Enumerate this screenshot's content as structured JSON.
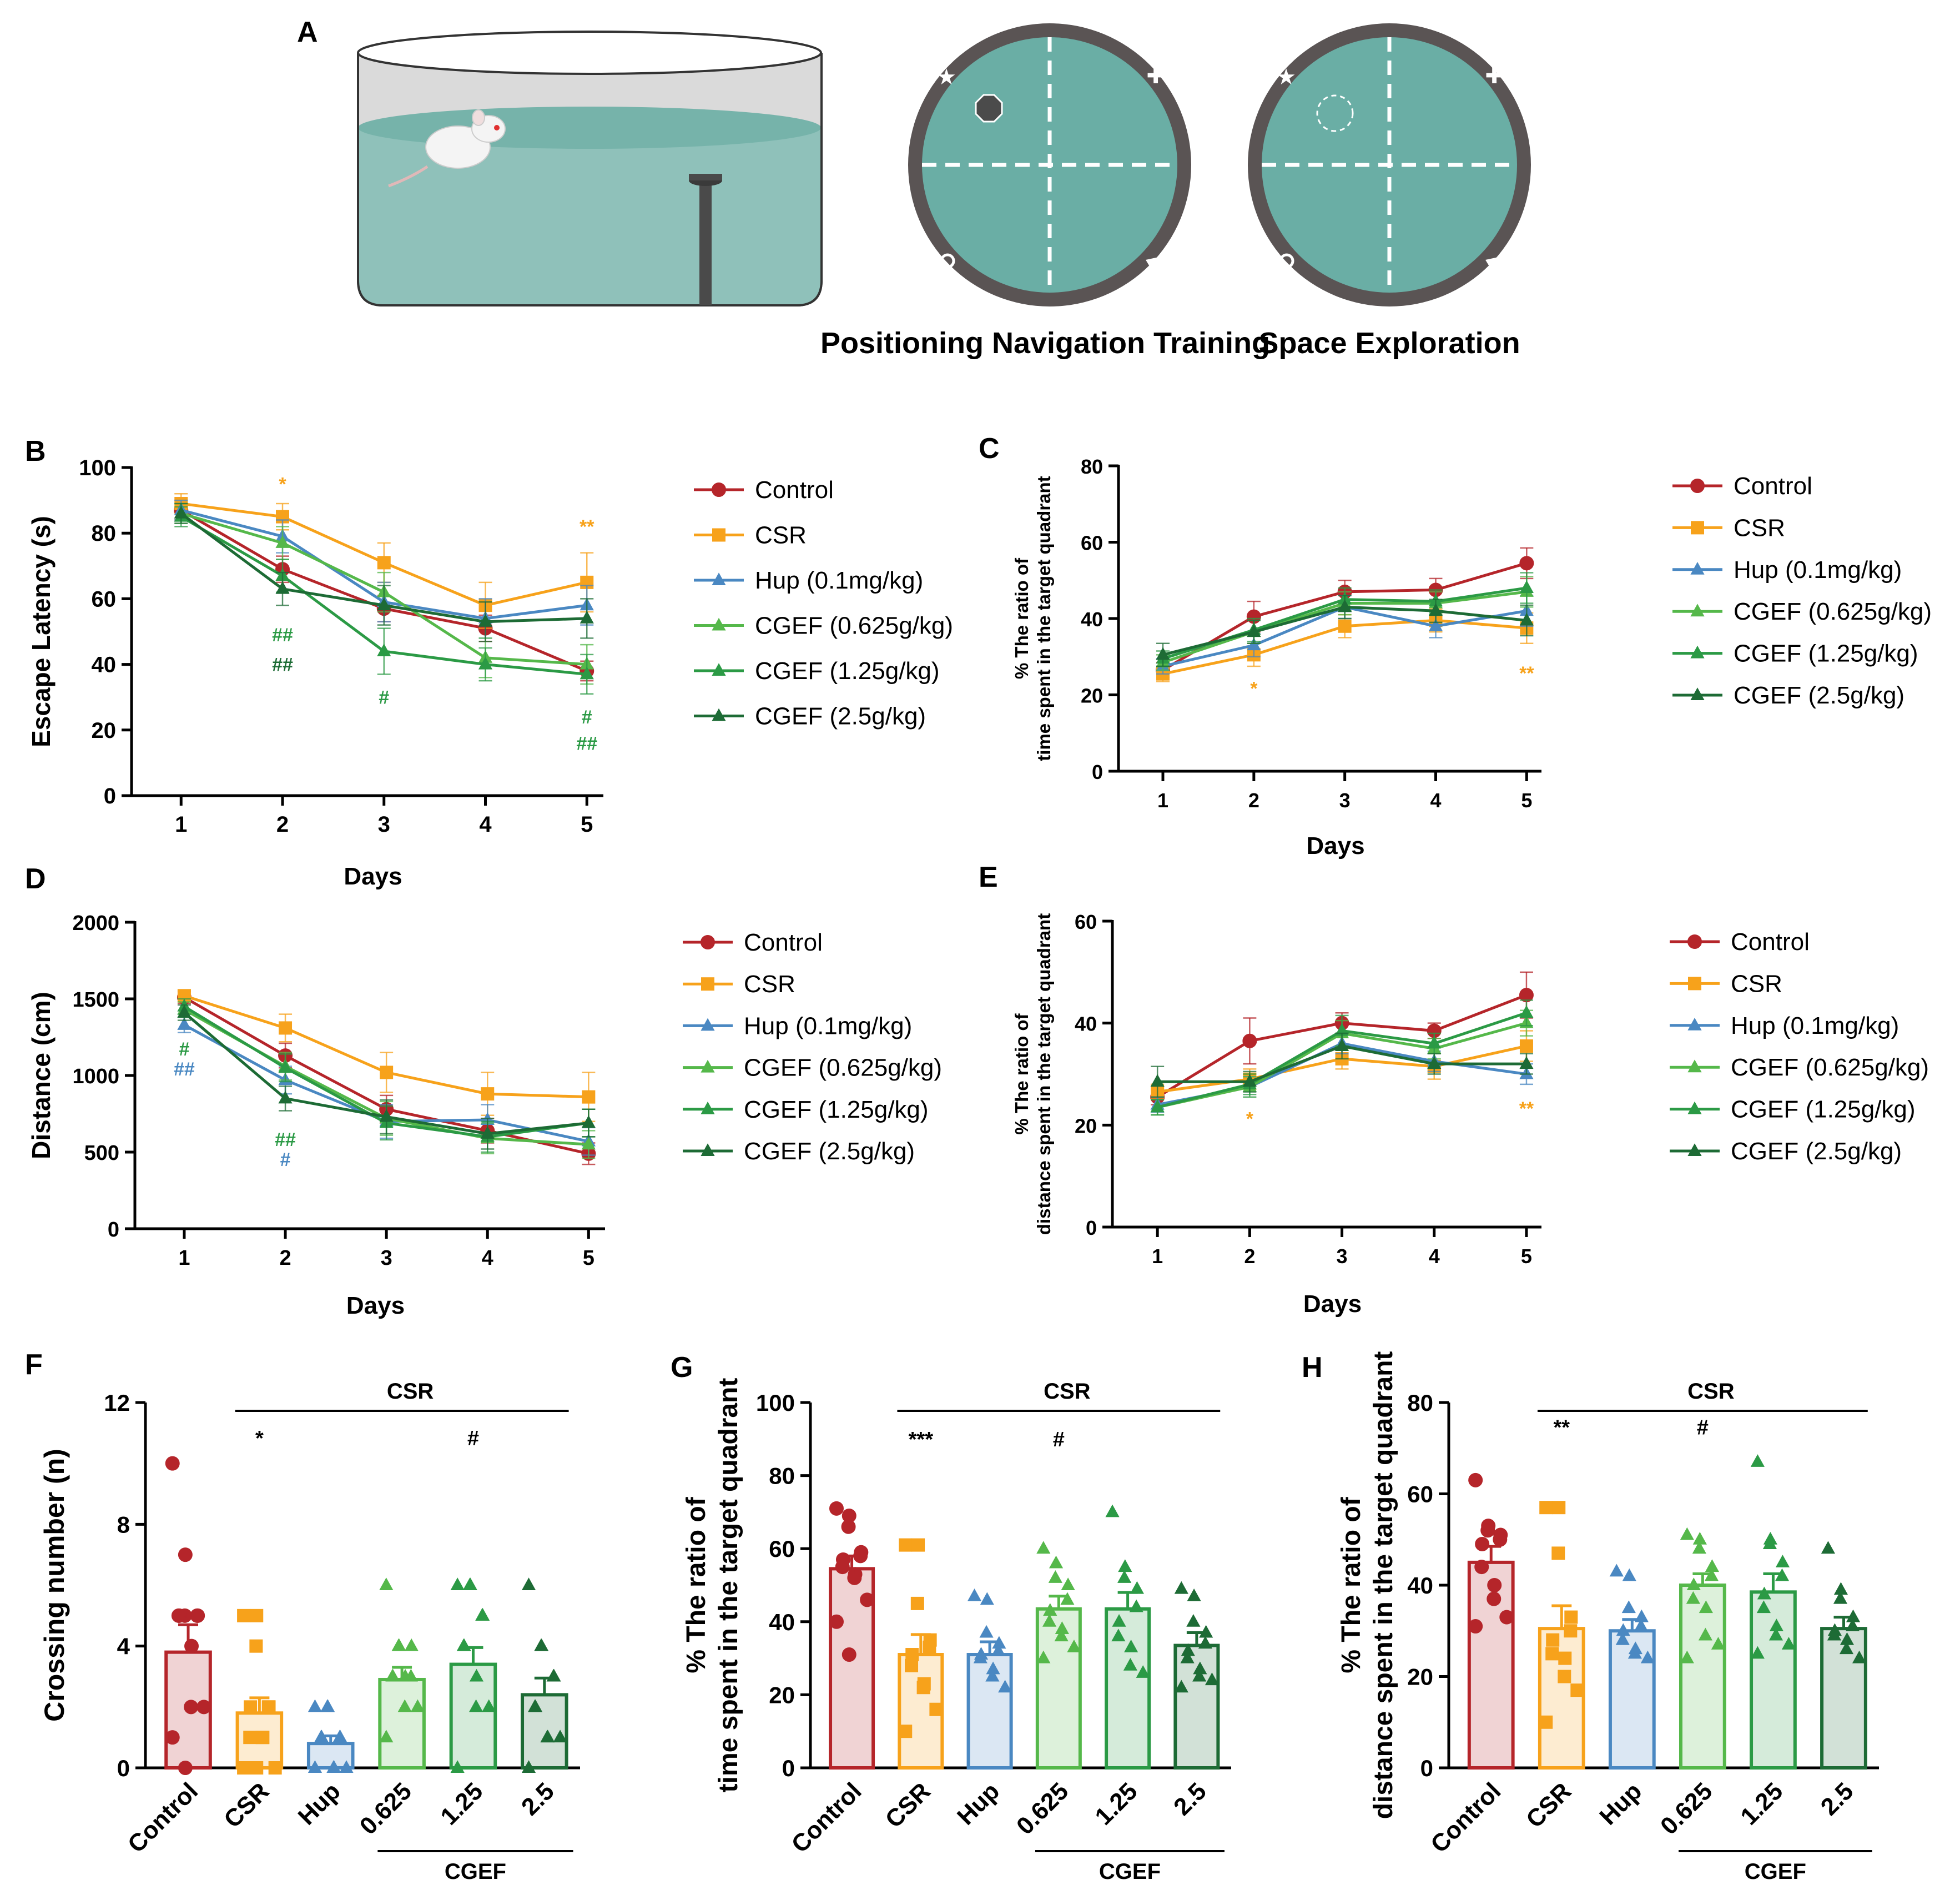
{
  "colors": {
    "Control": "#b5252a",
    "CSR": "#f7a21b",
    "Hup": "#4a88c2",
    "CGEF_0625": "#55b84a",
    "CGEF_125": "#2b9a45",
    "CGEF_25": "#1d6b35",
    "water": "#6aaea5",
    "pool_border": "#4d4848"
  },
  "panel_letters": [
    "A",
    "B",
    "C",
    "D",
    "E",
    "F",
    "G",
    "H"
  ],
  "panelA": {
    "maze_labels": [
      "Positioning Navigation Training",
      "Space Exploration"
    ]
  },
  "line_legend": [
    "Control",
    "CSR",
    "Hup (0.1mg/kg)",
    "CGEF (0.625g/kg)",
    "CGEF (1.25g/kg)",
    "CGEF (2.5g/kg)"
  ],
  "chart_data": [
    {
      "id": "B",
      "type": "line",
      "ylabel": "Escape Latency (s)",
      "xlabel": "Days",
      "x": [
        1,
        2,
        3,
        4,
        5
      ],
      "ylim": [
        0,
        100
      ],
      "yticks": [
        0,
        20,
        40,
        60,
        80,
        100
      ],
      "series": [
        {
          "name": "Control",
          "color_key": "Control",
          "marker": "circle",
          "values": [
            87,
            69,
            57,
            51,
            38
          ],
          "err": [
            3,
            4,
            4,
            4,
            3
          ]
        },
        {
          "name": "CSR",
          "color_key": "CSR",
          "marker": "square",
          "values": [
            89,
            85,
            71,
            58,
            65
          ],
          "err": [
            3,
            4,
            6,
            7,
            9
          ]
        },
        {
          "name": "Hup (0.1mg/kg)",
          "color_key": "Hup",
          "marker": "triangle",
          "values": [
            87,
            79,
            59,
            54,
            58
          ],
          "err": [
            3,
            5,
            6,
            6,
            6
          ]
        },
        {
          "name": "CGEF (0.625g/kg)",
          "color_key": "CGEF_0625",
          "marker": "triangle",
          "values": [
            86,
            77,
            62,
            42,
            40
          ],
          "err": [
            3,
            5,
            6,
            6,
            6
          ]
        },
        {
          "name": "CGEF (1.25g/kg)",
          "color_key": "CGEF_125",
          "marker": "triangle",
          "values": [
            85,
            67,
            44,
            40,
            37
          ],
          "err": [
            3,
            5,
            7,
            5,
            6
          ]
        },
        {
          "name": "CGEF (2.5g/kg)",
          "color_key": "CGEF_25",
          "marker": "triangle",
          "values": [
            86,
            63,
            58,
            53,
            54
          ],
          "err": [
            3,
            5,
            6,
            6,
            6
          ]
        }
      ],
      "annotations": [
        {
          "text": "*",
          "x": 2,
          "y": 93,
          "color_key": "CSR"
        },
        {
          "text": "**",
          "x": 5,
          "y": 80,
          "color_key": "CSR"
        },
        {
          "text": "##",
          "x": 2,
          "y": 47,
          "color_key": "CGEF_125"
        },
        {
          "text": "##",
          "x": 2,
          "y": 38,
          "color_key": "CGEF_25"
        },
        {
          "text": "#",
          "x": 3,
          "y": 28,
          "color_key": "CGEF_125"
        },
        {
          "text": "#",
          "x": 5,
          "y": 22,
          "color_key": "CGEF_125"
        },
        {
          "text": "##",
          "x": 5,
          "y": 14,
          "color_key": "CGEF_125"
        }
      ]
    },
    {
      "id": "C",
      "type": "line",
      "ylabel": "% The ratio of time spent in the target quadrant",
      "xlabel": "Days",
      "x": [
        1,
        2,
        3,
        4,
        5
      ],
      "ylim": [
        0,
        80
      ],
      "yticks": [
        0,
        20,
        40,
        60,
        80
      ],
      "series": [
        {
          "name": "Control",
          "color_key": "Control",
          "marker": "circle",
          "values": [
            26.5,
            40.5,
            47,
            47.5,
            54.5
          ],
          "err": [
            2,
            4,
            3,
            3,
            4
          ]
        },
        {
          "name": "CSR",
          "color_key": "CSR",
          "marker": "square",
          "values": [
            25.5,
            30.5,
            38,
            39.5,
            37.5
          ],
          "err": [
            2,
            3,
            3,
            3,
            4
          ]
        },
        {
          "name": "Hup (0.1mg/kg)",
          "color_key": "Hup",
          "marker": "triangle",
          "values": [
            27.5,
            33,
            43,
            38,
            42
          ],
          "err": [
            2,
            3,
            3,
            3,
            4
          ]
        },
        {
          "name": "CGEF (0.625g/kg)",
          "color_key": "CGEF_0625",
          "marker": "triangle",
          "values": [
            28.5,
            36.5,
            44,
            44,
            47
          ],
          "err": [
            2,
            3,
            3,
            3,
            4
          ]
        },
        {
          "name": "CGEF (1.25g/kg)",
          "color_key": "CGEF_125",
          "marker": "triangle",
          "values": [
            29.5,
            37,
            45,
            44.5,
            48
          ],
          "err": [
            2,
            3,
            3,
            3,
            4
          ]
        },
        {
          "name": "CGEF (2.5g/kg)",
          "color_key": "CGEF_25",
          "marker": "triangle",
          "values": [
            30.5,
            36.5,
            43,
            42,
            39.5
          ],
          "err": [
            3,
            3,
            3,
            3,
            4
          ]
        }
      ],
      "annotations": [
        {
          "text": "*",
          "x": 2,
          "y": 20,
          "color_key": "CSR"
        },
        {
          "text": "**",
          "x": 5,
          "y": 24,
          "color_key": "CSR"
        }
      ]
    },
    {
      "id": "D",
      "type": "line",
      "ylabel": "Distance (cm)",
      "xlabel": "Days",
      "x": [
        1,
        2,
        3,
        4,
        5
      ],
      "ylim": [
        0,
        2000
      ],
      "yticks": [
        0,
        500,
        1000,
        1500,
        2000
      ],
      "series": [
        {
          "name": "Control",
          "color_key": "Control",
          "marker": "circle",
          "values": [
            1510,
            1130,
            780,
            640,
            490
          ],
          "err": [
            40,
            80,
            90,
            80,
            70
          ]
        },
        {
          "name": "CSR",
          "color_key": "CSR",
          "marker": "square",
          "values": [
            1520,
            1310,
            1020,
            880,
            860
          ],
          "err": [
            40,
            90,
            130,
            140,
            160
          ]
        },
        {
          "name": "Hup (0.1mg/kg)",
          "color_key": "Hup",
          "marker": "triangle",
          "values": [
            1330,
            970,
            700,
            710,
            570
          ],
          "err": [
            50,
            90,
            110,
            100,
            90
          ]
        },
        {
          "name": "CGEF (0.625g/kg)",
          "color_key": "CGEF_0625",
          "marker": "triangle",
          "values": [
            1430,
            1060,
            720,
            590,
            550
          ],
          "err": [
            50,
            90,
            110,
            100,
            90
          ]
        },
        {
          "name": "CGEF (1.25g/kg)",
          "color_key": "CGEF_125",
          "marker": "triangle",
          "values": [
            1450,
            1050,
            690,
            600,
            690
          ],
          "err": [
            50,
            90,
            110,
            100,
            90
          ]
        },
        {
          "name": "CGEF (2.5g/kg)",
          "color_key": "CGEF_25",
          "marker": "triangle",
          "values": [
            1410,
            850,
            730,
            620,
            690
          ],
          "err": [
            50,
            80,
            110,
            100,
            90
          ]
        }
      ],
      "annotations": [
        {
          "text": "#",
          "x": 1,
          "y": 1130,
          "color_key": "CGEF_125"
        },
        {
          "text": "##",
          "x": 1,
          "y": 1000,
          "color_key": "Hup"
        },
        {
          "text": "##",
          "x": 2,
          "y": 540,
          "color_key": "CGEF_125"
        },
        {
          "text": "#",
          "x": 2,
          "y": 410,
          "color_key": "Hup"
        }
      ]
    },
    {
      "id": "E",
      "type": "line",
      "ylabel": "% The ratio of distance spent in the target quadrant",
      "xlabel": "Days",
      "x": [
        1,
        2,
        3,
        4,
        5
      ],
      "ylim": [
        0,
        60
      ],
      "yticks": [
        0,
        20,
        40,
        60
      ],
      "series": [
        {
          "name": "Control",
          "color_key": "Control",
          "marker": "circle",
          "values": [
            25.5,
            36.5,
            40,
            38.5,
            45.5
          ],
          "err": [
            1.5,
            4.5,
            2,
            1.5,
            4.5
          ]
        },
        {
          "name": "CSR",
          "color_key": "CSR",
          "marker": "square",
          "values": [
            26.5,
            29,
            33,
            31.5,
            35.5
          ],
          "err": [
            1.5,
            2,
            2,
            2.5,
            3
          ]
        },
        {
          "name": "Hup (0.1mg/kg)",
          "color_key": "Hup",
          "marker": "triangle",
          "values": [
            24,
            27.5,
            36,
            32.5,
            30
          ],
          "err": [
            1.5,
            2,
            2,
            2,
            2
          ]
        },
        {
          "name": "CGEF (0.625g/kg)",
          "color_key": "CGEF_0625",
          "marker": "triangle",
          "values": [
            23.5,
            27.5,
            38,
            35,
            40
          ],
          "err": [
            1.5,
            2,
            2.5,
            2,
            2.5
          ]
        },
        {
          "name": "CGEF (1.25g/kg)",
          "color_key": "CGEF_125",
          "marker": "triangle",
          "values": [
            23.5,
            28,
            38.5,
            36,
            42
          ],
          "err": [
            1.5,
            2,
            3,
            2,
            2.5
          ]
        },
        {
          "name": "CGEF (2.5g/kg)",
          "color_key": "CGEF_25",
          "marker": "triangle",
          "values": [
            28.5,
            28.5,
            35.5,
            32,
            32
          ],
          "err": [
            3,
            2,
            2.5,
            2,
            2
          ]
        }
      ],
      "annotations": [
        {
          "text": "*",
          "x": 2,
          "y": 20,
          "color_key": "CSR"
        },
        {
          "text": "**",
          "x": 5,
          "y": 22,
          "color_key": "CSR"
        }
      ]
    },
    {
      "id": "F",
      "type": "bar",
      "ylabel": "Crossing number (n)",
      "ylim": [
        0,
        12
      ],
      "yticks": [
        0,
        4,
        8,
        12
      ],
      "categories": [
        "Control",
        "CSR",
        "Hup",
        "0.625",
        "1.25",
        "2.5"
      ],
      "color_keys": [
        "Control",
        "CSR",
        "Hup",
        "CGEF_0625",
        "CGEF_125",
        "CGEF_25"
      ],
      "markers": [
        "circle",
        "square",
        "triangle",
        "triangle",
        "triangle",
        "triangle"
      ],
      "values": [
        3.8,
        1.8,
        0.8,
        2.9,
        3.4,
        2.4
      ],
      "err": [
        0.9,
        0.5,
        0.25,
        0.4,
        0.55,
        0.55
      ],
      "points": [
        [
          10,
          7,
          5,
          5,
          5,
          5,
          5,
          4,
          2,
          2,
          1,
          0
        ],
        [
          5,
          5,
          4,
          2,
          2,
          2,
          1,
          1,
          1,
          0,
          0,
          0
        ],
        [
          2,
          2,
          2,
          1,
          1,
          1,
          1,
          0,
          0,
          0,
          0
        ],
        [
          6,
          4,
          4,
          4,
          3,
          3,
          3,
          3,
          2,
          2,
          1
        ],
        [
          6,
          6,
          6,
          5,
          5,
          4,
          4,
          3,
          2,
          2,
          0
        ],
        [
          6,
          4,
          4,
          3,
          3,
          2,
          2,
          1,
          1,
          1,
          0
        ]
      ],
      "group_label": "CSR",
      "subgroup_label": "CGEF",
      "sig": [
        {
          "text": "*",
          "cat": 1,
          "y": 10.6
        },
        {
          "text": "#",
          "cat": 4,
          "y": 10.6
        }
      ]
    },
    {
      "id": "G",
      "type": "bar",
      "ylabel": "% The ratio of time spent in the target quadrant",
      "ylim": [
        0,
        100
      ],
      "yticks": [
        0,
        20,
        40,
        60,
        80,
        100
      ],
      "categories": [
        "Control",
        "CSR",
        "Hup",
        "0.625",
        "1.25",
        "2.5"
      ],
      "color_keys": [
        "Control",
        "CSR",
        "Hup",
        "CGEF_0625",
        "CGEF_125",
        "CGEF_25"
      ],
      "markers": [
        "circle",
        "square",
        "triangle",
        "triangle",
        "triangle",
        "triangle"
      ],
      "values": [
        54.5,
        31,
        31,
        43.5,
        43.5,
        33.5
      ],
      "err": [
        3.5,
        5.5,
        3.5,
        3.5,
        4.5,
        3.5
      ],
      "points": [
        [
          71,
          69,
          66,
          59,
          58,
          57,
          55,
          53,
          52,
          46,
          40,
          31
        ],
        [
          61,
          61,
          45,
          35,
          33,
          31,
          28,
          23,
          22,
          16,
          10
        ],
        [
          47,
          46,
          37,
          34,
          32,
          31,
          30,
          27,
          25,
          22
        ],
        [
          60,
          56,
          52,
          50,
          46,
          43,
          40,
          38,
          36,
          33,
          30
        ],
        [
          70,
          55,
          52,
          49,
          44,
          40,
          36,
          33,
          28,
          26
        ],
        [
          49,
          47,
          40,
          37,
          34,
          32,
          30,
          27,
          25,
          24,
          22
        ]
      ],
      "group_label": "CSR",
      "subgroup_label": "CGEF",
      "sig": [
        {
          "text": "***",
          "cat": 1,
          "y": 88
        },
        {
          "text": "#",
          "cat": 3,
          "y": 88
        }
      ]
    },
    {
      "id": "H",
      "type": "bar",
      "ylabel": "% The ratio of distance spent in the target quadrant",
      "ylim": [
        0,
        80
      ],
      "yticks": [
        0,
        20,
        40,
        60,
        80
      ],
      "categories": [
        "Control",
        "CSR",
        "Hup",
        "0.625",
        "1.25",
        "2.5"
      ],
      "color_keys": [
        "Control",
        "CSR",
        "Hup",
        "CGEF_0625",
        "CGEF_125",
        "CGEF_25"
      ],
      "markers": [
        "circle",
        "square",
        "triangle",
        "triangle",
        "triangle",
        "triangle"
      ],
      "values": [
        45,
        30.5,
        30,
        40,
        38.5,
        30.5
      ],
      "err": [
        3.5,
        5,
        2.5,
        2.5,
        4,
        2.5
      ],
      "points": [
        [
          63,
          53,
          52,
          51,
          50,
          49,
          44,
          40,
          37,
          33,
          31
        ],
        [
          57,
          57,
          47,
          33,
          30,
          28,
          25,
          24,
          20,
          17,
          10
        ],
        [
          43,
          42,
          35,
          33,
          31,
          30,
          28,
          26,
          25,
          24
        ],
        [
          51,
          50,
          48,
          44,
          42,
          40,
          37,
          35,
          29,
          27,
          24
        ],
        [
          67,
          50,
          49,
          45,
          42,
          38,
          35,
          31,
          29,
          27,
          25
        ],
        [
          48,
          39,
          37,
          33,
          31,
          30,
          29,
          28,
          26,
          24
        ]
      ],
      "group_label": "CSR",
      "subgroup_label": "CGEF",
      "sig": [
        {
          "text": "**",
          "cat": 1,
          "y": 73
        },
        {
          "text": "#",
          "cat": 3,
          "y": 73
        }
      ]
    }
  ]
}
